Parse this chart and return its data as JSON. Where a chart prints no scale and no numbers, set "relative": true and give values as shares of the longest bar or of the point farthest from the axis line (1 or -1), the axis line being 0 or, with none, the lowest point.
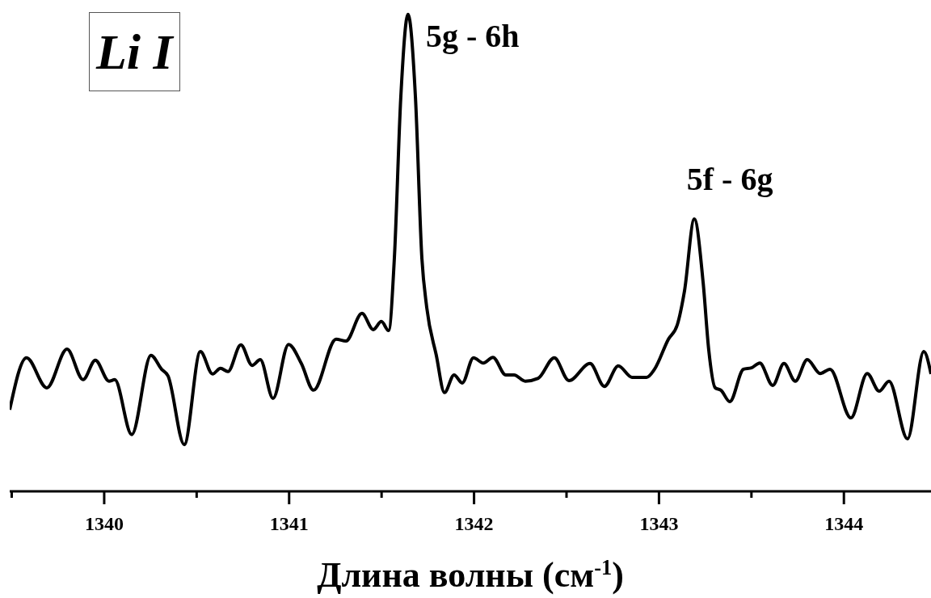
{
  "chart_data": {
    "type": "line",
    "relative": true,
    "xlabel": "Длина волны (см$^{-1}$)",
    "xlim": [
      1339.489,
      1344.471
    ],
    "xticks": [
      {
        "value": 1339.5,
        "label": null
      },
      1340,
      {
        "value": 1340.5,
        "label": null
      },
      1341,
      {
        "value": 1341.5,
        "label": null
      },
      1342,
      {
        "value": 1342.5,
        "label": null
      },
      1343,
      {
        "value": 1343.5,
        "label": null
      },
      1344
    ],
    "annotations": [
      "Li I",
      {
        "text": "5g - 6h",
        "x": 1341.643,
        "y": 1
      },
      {
        "text": "5f - 6g",
        "x": 1343.191,
        "y": 0.571
      }
    ],
    "marker": "none",
    "grid": false,
    "series": [
      {
        "color": "#000000",
        "x": [
          1339.489,
          1339.58,
          1339.69,
          1339.799,
          1339.886,
          1339.952,
          1340.026,
          1340.057,
          1340.149,
          1340.253,
          1340.31,
          1340.345,
          1340.433,
          1340.52,
          1340.586,
          1340.629,
          1340.669,
          1340.739,
          1340.8,
          1340.844,
          1340.913,
          1340.997,
          1341.066,
          1341.132,
          1341.254,
          1341.307,
          1341.394,
          1341.455,
          1341.499,
          1341.538,
          1341.569,
          1341.604,
          1341.643,
          1341.683,
          1341.718,
          1341.744,
          1341.796,
          1341.84,
          1341.892,
          1341.936,
          1341.997,
          1342.05,
          1342.102,
          1342.172,
          1342.216,
          1342.277,
          1342.347,
          1342.434,
          1342.513,
          1342.627,
          1342.705,
          1342.78,
          1342.854,
          1342.933,
          1342.976,
          1343.051,
          1343.099,
          1343.138,
          1343.191,
          1343.239,
          1343.269,
          1343.304,
          1343.335,
          1343.383,
          1343.457,
          1343.501,
          1343.545,
          1343.615,
          1343.676,
          1343.737,
          1343.802,
          1343.872,
          1343.925,
          1344.038,
          1344.126,
          1344.191,
          1344.244,
          1344.344,
          1344.432,
          1344.471
        ],
        "values": [
          0.171,
          0.28,
          0.217,
          0.298,
          0.234,
          0.275,
          0.231,
          0.234,
          0.119,
          0.285,
          0.256,
          0.242,
          0.098,
          0.293,
          0.246,
          0.258,
          0.251,
          0.307,
          0.264,
          0.276,
          0.195,
          0.308,
          0.268,
          0.212,
          0.319,
          0.315,
          0.373,
          0.339,
          0.356,
          0.337,
          0.488,
          0.827,
          1,
          0.827,
          0.488,
          0.386,
          0.285,
          0.207,
          0.244,
          0.227,
          0.28,
          0.269,
          0.281,
          0.244,
          0.244,
          0.231,
          0.237,
          0.28,
          0.232,
          0.268,
          0.22,
          0.263,
          0.239,
          0.239,
          0.256,
          0.319,
          0.349,
          0.42,
          0.571,
          0.437,
          0.297,
          0.217,
          0.212,
          0.188,
          0.256,
          0.259,
          0.269,
          0.222,
          0.268,
          0.231,
          0.276,
          0.247,
          0.256,
          0.154,
          0.247,
          0.21,
          0.231,
          0.11,
          0.293,
          0.246
        ]
      }
    ]
  }
}
